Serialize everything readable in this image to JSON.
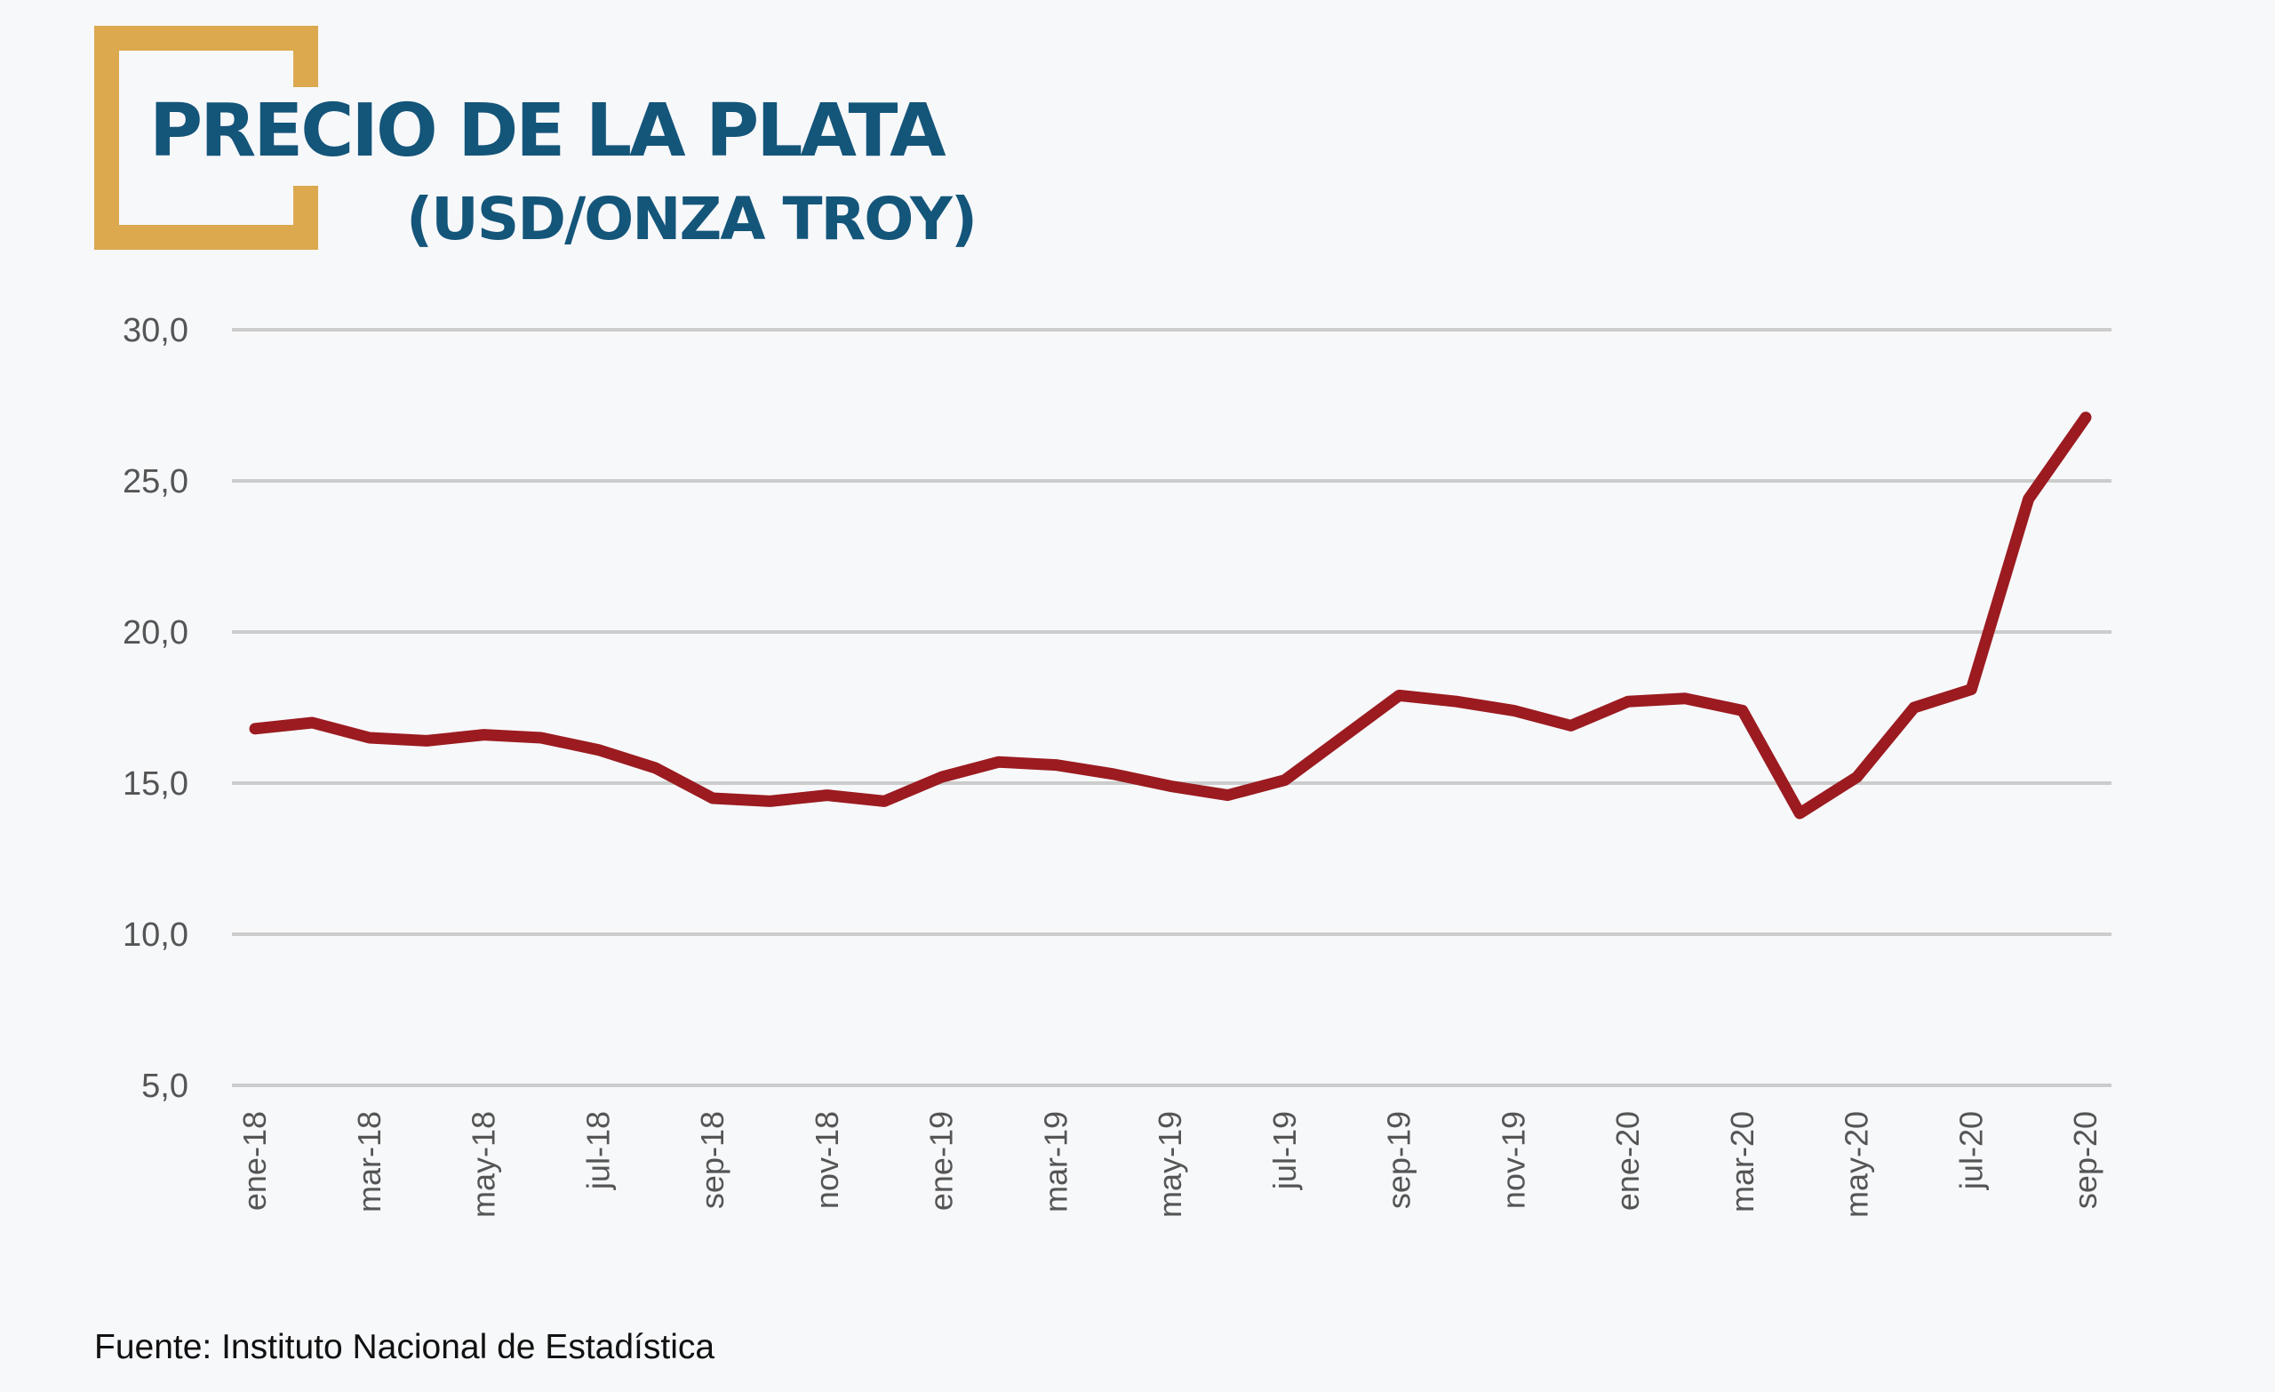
{
  "title": "PRECIO DE LA PLATA",
  "subtitle": "(USD/ONZA TROY)",
  "footer": "Fuente: Instituto Nacional de Estadística",
  "colors": {
    "line": "#9b1b20",
    "title": "#14557a",
    "bracket": "#dca94f",
    "grid": "#cccccc"
  },
  "chart_data": {
    "type": "line",
    "title": "PRECIO DE LA PLATA (USD/ONZA TROY)",
    "xlabel": "",
    "ylabel": "",
    "ylim": [
      5,
      30
    ],
    "yticks": [
      "5,0",
      "10,0",
      "15,0",
      "20,0",
      "25,0",
      "30,0"
    ],
    "ytick_values": [
      5,
      10,
      15,
      20,
      25,
      30
    ],
    "grid": true,
    "x": [
      "ene-18",
      "feb-18",
      "mar-18",
      "abr-18",
      "may-18",
      "jun-18",
      "jul-18",
      "ago-18",
      "sep-18",
      "oct-18",
      "nov-18",
      "dic-18",
      "ene-19",
      "feb-19",
      "mar-19",
      "abr-19",
      "may-19",
      "jun-19",
      "jul-19",
      "ago-19",
      "sep-19",
      "oct-19",
      "nov-19",
      "dic-19",
      "ene-20",
      "feb-20",
      "mar-20",
      "abr-20",
      "may-20",
      "jun-20",
      "jul-20",
      "ago-20",
      "sep-20"
    ],
    "xtick_labels": [
      "ene-18",
      "mar-18",
      "may-18",
      "jul-18",
      "sep-18",
      "nov-18",
      "ene-19",
      "mar-19",
      "may-19",
      "jul-19",
      "sep-19",
      "nov-19",
      "ene-20",
      "mar-20",
      "may-20",
      "jul-20",
      "sep-20"
    ],
    "series": [
      {
        "name": "Precio de la plata",
        "values": [
          16.8,
          17.0,
          16.5,
          16.4,
          16.6,
          16.5,
          16.1,
          15.5,
          14.5,
          14.4,
          14.6,
          14.4,
          15.2,
          15.7,
          15.6,
          15.3,
          14.9,
          14.6,
          15.1,
          16.5,
          17.9,
          17.7,
          17.4,
          16.9,
          17.7,
          17.8,
          17.4,
          14.0,
          15.2,
          17.5,
          18.1,
          24.4,
          27.1
        ]
      }
    ]
  }
}
